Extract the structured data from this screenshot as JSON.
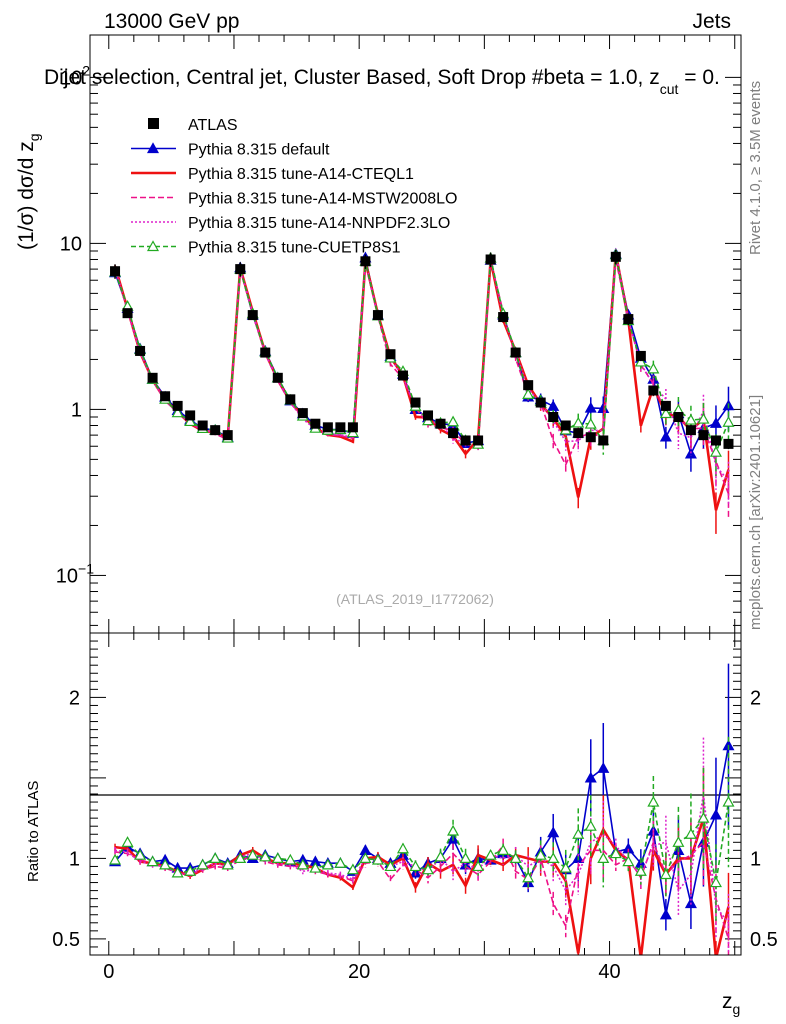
{
  "header": {
    "energy_label": "13000 GeV pp",
    "category_label": "Jets",
    "selection_title": "Dijet selection, Central jet, Cluster Based, Soft Drop #beta = 1.0, z",
    "selection_title_sub": "cut",
    "selection_title_tail": " = 0.",
    "side_note_top": "Rivet 4.1.0, ≥ 3.5M events",
    "side_note_bottom": "mcplots.cern.ch [arXiv:2401.10621]",
    "watermark": "(ATLAS_2019_I1772062)"
  },
  "chart_data": {
    "type": "line",
    "title": "Dijet selection, Central jet, Cluster Based, Soft Drop #beta = 1.0, z_cut = 0.",
    "xlabel": "z_g",
    "ylabel_main": "(1/σ) dσ/d z_g",
    "ylabel_ratio": "Ratio to ATLAS",
    "xlim": [
      -1.5,
      50.5
    ],
    "ylim_main": [
      0.045,
      180
    ],
    "ylim_ratio": [
      0.4,
      2.4
    ],
    "yscale_main": "log",
    "x_ticks": [
      "0",
      "20",
      "40"
    ],
    "main_y_ticks": [
      {
        "base": "10",
        "exp": "−1"
      },
      {
        "base": "1",
        "exp": ""
      },
      {
        "base": "10",
        "exp": ""
      },
      {
        "base": "10",
        "exp": "2"
      }
    ],
    "ratio_y_ticks": [
      "0.5",
      "1",
      "2"
    ],
    "legend": [
      "ATLAS",
      "Pythia 8.315 default",
      "Pythia 8.315 tune-A14-CTEQL1",
      "Pythia 8.315 tune-A14-MSTW2008LO",
      "Pythia 8.315 tune-A14-NNPDF2.3LO",
      "Pythia 8.315 tune-CUETP8S1"
    ],
    "x": [
      0.5,
      1.5,
      2.5,
      3.5,
      4.5,
      5.5,
      6.5,
      7.5,
      8.5,
      9.5,
      10.5,
      11.5,
      12.5,
      13.5,
      14.5,
      15.5,
      16.5,
      17.5,
      18.5,
      19.5,
      20.5,
      21.5,
      22.5,
      23.5,
      24.5,
      25.5,
      26.5,
      27.5,
      28.5,
      29.5,
      30.5,
      31.5,
      32.5,
      33.5,
      34.5,
      35.5,
      36.5,
      37.5,
      38.5,
      39.5,
      40.5,
      41.5,
      42.5,
      43.5,
      44.5,
      45.5,
      46.5,
      47.5,
      48.5,
      49.5
    ],
    "data": [
      6.8,
      3.8,
      2.25,
      1.55,
      1.2,
      1.05,
      0.92,
      0.8,
      0.75,
      0.7,
      7.0,
      3.7,
      2.2,
      1.55,
      1.15,
      0.95,
      0.82,
      0.78,
      0.78,
      0.78,
      7.8,
      3.7,
      2.15,
      1.6,
      1.1,
      0.92,
      0.82,
      0.72,
      0.65,
      0.65,
      8.0,
      3.6,
      2.2,
      1.4,
      1.1,
      0.9,
      0.8,
      0.72,
      0.68,
      0.65,
      8.3,
      3.5,
      2.1,
      1.3,
      1.05,
      0.9,
      0.75,
      0.7,
      0.65,
      0.62
    ],
    "data_errors": [
      0.1,
      0.06,
      0.04,
      0.04,
      0.03,
      0.03,
      0.03,
      0.03,
      0.03,
      0.03,
      0.1,
      0.06,
      0.04,
      0.04,
      0.03,
      0.03,
      0.03,
      0.03,
      0.03,
      0.03,
      0.1,
      0.06,
      0.05,
      0.04,
      0.04,
      0.04,
      0.04,
      0.04,
      0.04,
      0.04,
      0.1,
      0.07,
      0.06,
      0.05,
      0.05,
      0.05,
      0.05,
      0.05,
      0.05,
      0.05,
      0.1,
      0.08,
      0.07,
      0.07,
      0.07,
      0.07,
      0.07,
      0.07,
      0.07,
      0.07
    ],
    "series": [
      {
        "name": "Pythia 8.315 default",
        "color": "#0000cc",
        "dash": "",
        "marker": "triangle",
        "filled": true,
        "ratio": [
          0.98,
          1.07,
          1.03,
          0.98,
          0.99,
          0.94,
          0.94,
          0.96,
          1.0,
          0.97,
          1.02,
          1.0,
          1.02,
          1.0,
          0.98,
          0.99,
          0.98,
          0.97,
          0.97,
          0.92,
          1.05,
          1.0,
          0.97,
          1.02,
          0.91,
          0.97,
          1.0,
          1.12,
          0.96,
          1.0,
          0.99,
          1.03,
          1.0,
          0.85,
          1.04,
          1.16,
          0.93,
          1.0,
          1.5,
          1.56,
          1.04,
          1.06,
          0.97,
          1.17,
          0.65,
          1.05,
          0.72,
          1.1,
          1.27,
          1.7
        ],
        "rel_err": [
          0.02,
          0.02,
          0.02,
          0.02,
          0.02,
          0.02,
          0.02,
          0.02,
          0.02,
          0.02,
          0.02,
          0.02,
          0.02,
          0.02,
          0.02,
          0.02,
          0.02,
          0.02,
          0.02,
          0.02,
          0.03,
          0.03,
          0.03,
          0.03,
          0.04,
          0.04,
          0.05,
          0.06,
          0.06,
          0.06,
          0.03,
          0.04,
          0.05,
          0.07,
          0.09,
          0.1,
          0.12,
          0.14,
          0.16,
          0.18,
          0.04,
          0.06,
          0.09,
          0.12,
          0.15,
          0.2,
          0.22,
          0.25,
          0.28,
          0.3
        ]
      },
      {
        "name": "Pythia 8.315 tune-A14-CTEQL1",
        "color": "#ee1111",
        "dash": "",
        "marker": "none",
        "filled": false,
        "ratio": [
          1.07,
          1.06,
          0.98,
          0.97,
          0.95,
          0.92,
          0.89,
          0.93,
          0.97,
          0.96,
          1.02,
          1.05,
          1.0,
          0.97,
          0.97,
          0.96,
          0.94,
          0.9,
          0.88,
          0.82,
          1.0,
          1.01,
          0.96,
          1.0,
          0.82,
          0.97,
          0.92,
          0.96,
          0.83,
          1.02,
          0.99,
          0.96,
          1.02,
          1.0,
          0.98,
          0.98,
          0.86,
          0.41,
          1.0,
          1.18,
          1.05,
          0.99,
          0.38,
          1.05,
          0.9,
          1.0,
          1.0,
          1.25,
          0.38,
          0.7
        ],
        "rel_err": [
          0.02,
          0.02,
          0.02,
          0.02,
          0.02,
          0.02,
          0.02,
          0.02,
          0.02,
          0.02,
          0.02,
          0.02,
          0.02,
          0.02,
          0.02,
          0.02,
          0.02,
          0.02,
          0.02,
          0.02,
          0.03,
          0.03,
          0.03,
          0.03,
          0.04,
          0.04,
          0.05,
          0.06,
          0.06,
          0.06,
          0.03,
          0.04,
          0.05,
          0.07,
          0.09,
          0.1,
          0.12,
          0.14,
          0.16,
          0.18,
          0.04,
          0.06,
          0.09,
          0.12,
          0.15,
          0.2,
          0.22,
          0.25,
          0.28,
          0.3
        ]
      },
      {
        "name": "Pythia 8.315 tune-A14-MSTW2008LO",
        "color": "#ee1188",
        "dash": "6,3",
        "marker": "none",
        "filled": false,
        "ratio": [
          1.04,
          1.03,
          0.99,
          0.97,
          0.94,
          0.91,
          0.9,
          0.93,
          0.95,
          0.94,
          0.99,
          1.01,
          0.98,
          0.96,
          0.95,
          0.95,
          0.92,
          0.9,
          0.89,
          0.86,
          0.97,
          0.98,
          0.87,
          0.96,
          0.93,
          0.88,
          0.95,
          1.03,
          0.95,
          0.9,
          0.98,
          1.08,
          0.92,
          0.87,
          1.0,
          0.72,
          0.58,
          0.95,
          1.05,
          1.05,
          0.96,
          1.0,
          0.88,
          1.1,
          0.9,
          0.98,
          1.02,
          1.1,
          0.75,
          0.5
        ],
        "rel_err": [
          0.02,
          0.02,
          0.02,
          0.02,
          0.02,
          0.02,
          0.02,
          0.02,
          0.02,
          0.02,
          0.02,
          0.02,
          0.02,
          0.02,
          0.02,
          0.02,
          0.02,
          0.02,
          0.02,
          0.02,
          0.03,
          0.03,
          0.03,
          0.03,
          0.04,
          0.04,
          0.05,
          0.06,
          0.06,
          0.06,
          0.03,
          0.04,
          0.05,
          0.07,
          0.09,
          0.1,
          0.12,
          0.14,
          0.16,
          0.18,
          0.04,
          0.06,
          0.09,
          0.12,
          0.15,
          0.2,
          0.22,
          0.25,
          0.28,
          0.3
        ]
      },
      {
        "name": "Pythia 8.315 tune-A14-NNPDF2.3LO",
        "color": "#dd22cc",
        "dash": "2,2",
        "marker": "none",
        "filled": false,
        "ratio": [
          1.05,
          1.04,
          0.98,
          0.96,
          0.95,
          0.9,
          0.91,
          0.94,
          0.97,
          0.95,
          1.01,
          1.03,
          0.99,
          0.97,
          0.96,
          0.92,
          0.93,
          0.91,
          0.9,
          0.87,
          1.0,
          0.99,
          0.95,
          0.98,
          0.95,
          0.92,
          1.0,
          0.92,
          0.97,
          0.93,
          1.02,
          1.0,
          1.02,
          0.95,
          1.0,
          0.95,
          0.8,
          0.9,
          1.1,
          1.15,
          1.08,
          0.98,
          0.9,
          1.08,
          1.1,
          0.8,
          0.9,
          1.4,
          0.7,
          0.6
        ],
        "rel_err": [
          0.02,
          0.02,
          0.02,
          0.02,
          0.02,
          0.02,
          0.02,
          0.02,
          0.02,
          0.02,
          0.02,
          0.02,
          0.02,
          0.02,
          0.02,
          0.02,
          0.02,
          0.02,
          0.02,
          0.02,
          0.03,
          0.03,
          0.03,
          0.03,
          0.04,
          0.04,
          0.05,
          0.06,
          0.06,
          0.06,
          0.03,
          0.04,
          0.05,
          0.07,
          0.09,
          0.1,
          0.12,
          0.14,
          0.16,
          0.18,
          0.04,
          0.06,
          0.09,
          0.12,
          0.15,
          0.2,
          0.22,
          0.25,
          0.28,
          0.3
        ]
      },
      {
        "name": "Pythia 8.315 tune-CUETP8S1",
        "color": "#22aa22",
        "dash": "5,3",
        "marker": "triangle",
        "filled": false,
        "ratio": [
          0.99,
          1.1,
          1.02,
          0.98,
          0.96,
          0.91,
          0.92,
          0.96,
          1.0,
          0.96,
          1.0,
          1.02,
          1.01,
          1.0,
          0.99,
          0.96,
          0.94,
          0.96,
          0.97,
          0.93,
          1.0,
          0.99,
          0.95,
          1.06,
          0.95,
          0.93,
          1.01,
          1.17,
          1.0,
          0.95,
          1.02,
          1.05,
          1.0,
          0.88,
          1.02,
          1.0,
          0.94,
          1.15,
          1.2,
          1.0,
          1.03,
          0.98,
          0.92,
          1.35,
          0.9,
          1.1,
          1.15,
          1.25,
          0.85,
          1.35
        ],
        "rel_err": [
          0.02,
          0.02,
          0.02,
          0.02,
          0.02,
          0.02,
          0.02,
          0.02,
          0.02,
          0.02,
          0.02,
          0.02,
          0.02,
          0.02,
          0.02,
          0.02,
          0.02,
          0.02,
          0.02,
          0.02,
          0.03,
          0.03,
          0.03,
          0.03,
          0.04,
          0.04,
          0.05,
          0.06,
          0.06,
          0.06,
          0.03,
          0.04,
          0.05,
          0.07,
          0.09,
          0.1,
          0.12,
          0.14,
          0.16,
          0.18,
          0.04,
          0.06,
          0.09,
          0.12,
          0.15,
          0.2,
          0.22,
          0.25,
          0.28,
          0.3
        ]
      }
    ]
  }
}
